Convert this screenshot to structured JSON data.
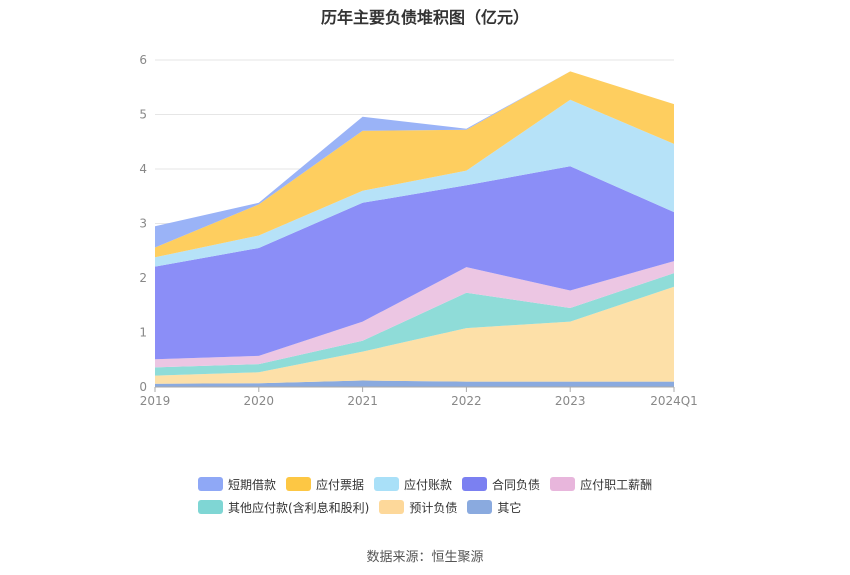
{
  "chart_data": {
    "type": "area",
    "stacked": true,
    "title": "历年主要负债堆积图（亿元）",
    "categories": [
      "2019",
      "2020",
      "2021",
      "2022",
      "2023",
      "2024Q1"
    ],
    "ylim": [
      0,
      6
    ],
    "yticks": [
      "0",
      "1",
      "2",
      "3",
      "4",
      "5",
      "6"
    ],
    "grid": true,
    "legend_position": "bottom",
    "series": [
      {
        "name": "其它",
        "color": "#8aaadf",
        "values": [
          0.06,
          0.07,
          0.12,
          0.1,
          0.1,
          0.1
        ]
      },
      {
        "name": "预计负债",
        "color": "#fde0a8",
        "values": [
          0.15,
          0.2,
          0.53,
          0.98,
          1.1,
          1.74
        ]
      },
      {
        "name": "其他应付款(含利息和股利)",
        "color": "#8fdcd8",
        "values": [
          0.15,
          0.15,
          0.2,
          0.65,
          0.25,
          0.25
        ]
      },
      {
        "name": "应付职工薪酬",
        "color": "#ecc6e3",
        "values": [
          0.15,
          0.15,
          0.35,
          0.47,
          0.32,
          0.22
        ]
      },
      {
        "name": "合同负债",
        "color": "#8b8ef7",
        "values": [
          1.7,
          1.98,
          2.18,
          1.5,
          2.28,
          0.9
        ]
      },
      {
        "name": "应付账款",
        "color": "#b6e2f8",
        "values": [
          0.17,
          0.23,
          0.22,
          0.27,
          1.22,
          1.25
        ]
      },
      {
        "name": "应付票据",
        "color": "#fece5f",
        "values": [
          0.18,
          0.57,
          1.1,
          0.75,
          0.52,
          0.73
        ]
      },
      {
        "name": "短期借款",
        "color": "#9ab3f7",
        "values": [
          0.39,
          0.03,
          0.26,
          0.02,
          0.0,
          0.0
        ]
      }
    ]
  },
  "legend": {
    "rows": [
      [
        {
          "label": "短期借款",
          "color": "#8fa8f6"
        },
        {
          "label": "应付票据",
          "color": "#fdc744"
        },
        {
          "label": "应付账款",
          "color": "#a9e0f8"
        },
        {
          "label": "合同负债",
          "color": "#7b80f1"
        },
        {
          "label": "应付职工薪酬",
          "color": "#e8b6dc"
        }
      ],
      [
        {
          "label": "其他应付款(含利息和股利)",
          "color": "#7fd6d4"
        },
        {
          "label": "预计负债",
          "color": "#fdd89a"
        },
        {
          "label": "其它",
          "color": "#8aaadf"
        }
      ]
    ]
  },
  "source": "数据来源：恒生聚源"
}
